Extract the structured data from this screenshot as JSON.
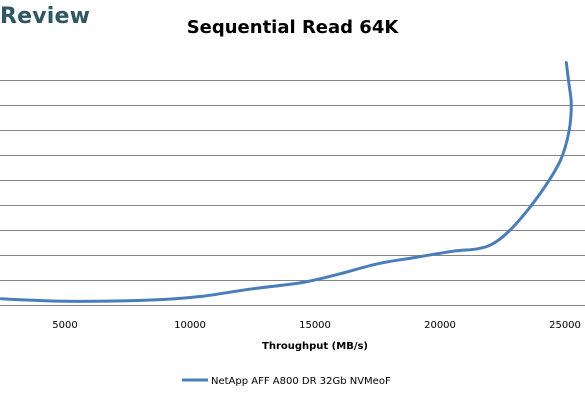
{
  "brand": {
    "text": "Review",
    "color": "#2f5661"
  },
  "chart_data": {
    "type": "line",
    "title": "Sequential Read 64K",
    "xlabel": "Throughput (MB/s)",
    "ylabel": "",
    "xlim": [
      2400,
      25800
    ],
    "x_ticks": [
      "5000",
      "10000",
      "15000",
      "20000",
      "25000"
    ],
    "grid": "horizontal",
    "legend_position": "bottom",
    "series": [
      {
        "name": "NetApp AFF A800 DR 32Gb NVMeoF",
        "color": "#4a7ebb",
        "x": [
          2450,
          3500,
          5000,
          7000,
          9000,
          10500,
          12500,
          14500,
          16000,
          17500,
          19000,
          20500,
          21500,
          22200,
          23000,
          24000,
          24800,
          25150,
          25250,
          25150,
          25050
        ],
        "y": [
          0.05,
          0.04,
          0.03,
          0.032,
          0.045,
          0.07,
          0.13,
          0.18,
          0.25,
          0.33,
          0.38,
          0.43,
          0.45,
          0.5,
          0.64,
          0.89,
          1.15,
          1.38,
          1.6,
          1.78,
          1.94
        ]
      }
    ]
  }
}
